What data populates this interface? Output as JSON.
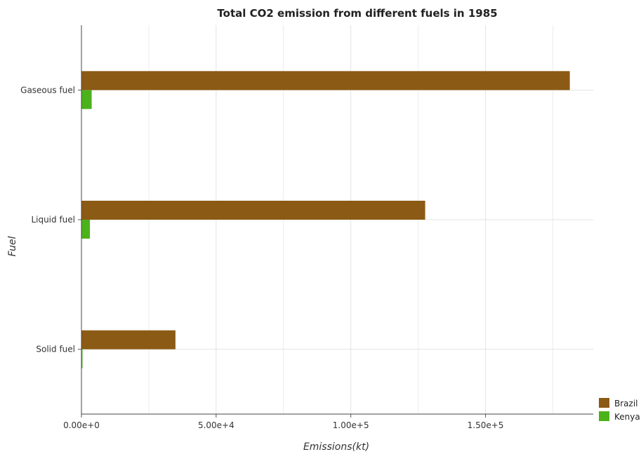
{
  "chart_data": {
    "type": "bar",
    "orientation": "horizontal",
    "title": "Total CO2 emission from different fuels in 1985",
    "xlabel": "Emissions(kt)",
    "ylabel": "Fuel",
    "categories": [
      "Gaseous fuel",
      "Liquid fuel",
      "Solid fuel"
    ],
    "series": [
      {
        "name": "Brazil",
        "color": "#8B5A14",
        "values": [
          181300,
          127600,
          34900
        ]
      },
      {
        "name": "Kenya",
        "color": "#4CB21B",
        "values": [
          3800,
          3150,
          250
        ]
      }
    ],
    "xlim": [
      0,
      190000
    ],
    "xticks": [
      0,
      50000,
      100000,
      150000
    ],
    "xtick_labels": [
      "0.00e+0",
      "5.00e+4",
      "1.00e+5",
      "1.50e+5"
    ],
    "grid": true,
    "legend_position": "bottom-right"
  }
}
